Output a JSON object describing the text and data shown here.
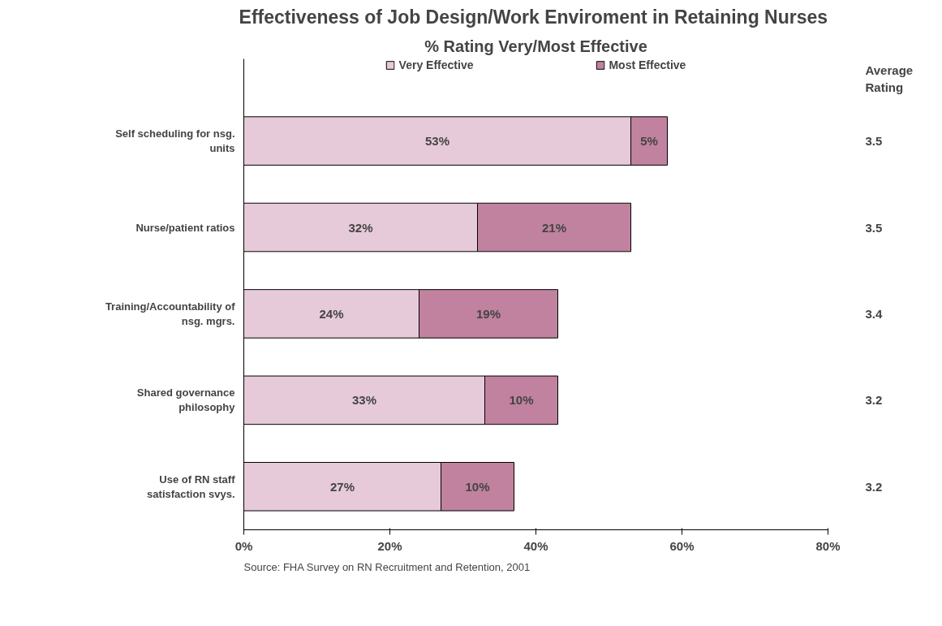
{
  "chart_data": {
    "type": "bar",
    "orientation": "horizontal",
    "stacked": true,
    "title": "Effectiveness of Job Design/Work Enviroment in  Retaining Nurses",
    "subtitle": "% Rating Very/Most Effective",
    "categories": [
      "Self scheduling for nsg. units",
      "Nurse/patient ratios",
      "Training/Accountability of nsg. mgrs.",
      "Shared governance philosophy",
      "Use of RN staff satisfaction svys."
    ],
    "series": [
      {
        "name": "Very Effective",
        "color": "#e6cad9",
        "values": [
          53,
          32,
          24,
          33,
          27
        ],
        "value_labels": [
          "53%",
          "32%",
          "24%",
          "33%",
          "27%"
        ]
      },
      {
        "name": "Most Effective",
        "color": "#c0829f",
        "values": [
          5,
          21,
          19,
          10,
          10
        ],
        "value_labels": [
          "5%",
          "21%",
          "19%",
          "10%",
          "10%"
        ]
      }
    ],
    "xlim": [
      0,
      80
    ],
    "xticks": [
      {
        "value": 0,
        "label": "0%"
      },
      {
        "value": 20,
        "label": "20%"
      },
      {
        "value": 40,
        "label": "40%"
      },
      {
        "value": 60,
        "label": "60%"
      },
      {
        "value": 80,
        "label": "80%"
      }
    ],
    "grid": false,
    "legend": "top",
    "annotations": [
      "Average Rating",
      "3.5",
      "3.5",
      "3.4",
      "3.2",
      "3.2",
      "Source:     FHA Survey on RN Recruitment and Retention, 2001"
    ]
  }
}
